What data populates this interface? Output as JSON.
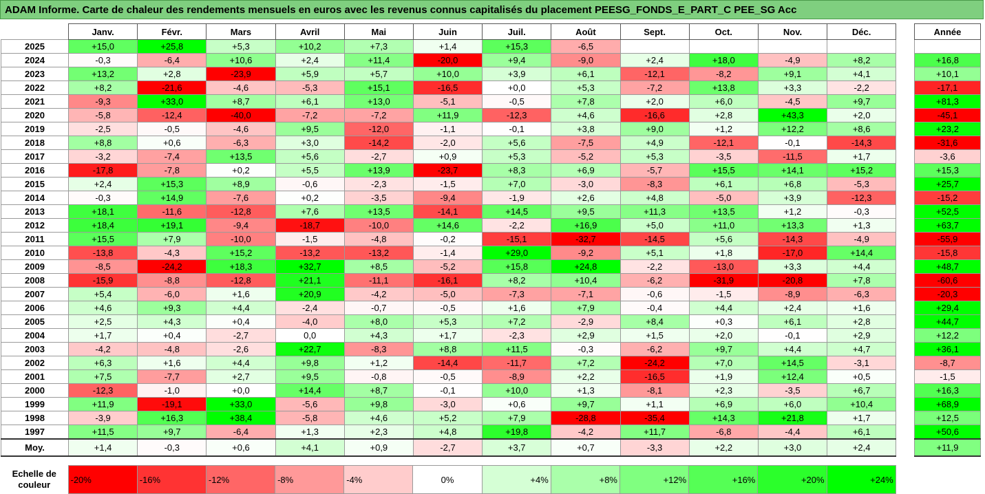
{
  "title": "ADAM Informe. Carte de chaleur des rendements mensuels en euros avec les revenus connus capitalisés du placement PEESG_FONDS_E_PART_C PEE_SG Acc",
  "chart_data": {
    "type": "heatmap",
    "title": "ADAM Informe. Carte de chaleur des rendements mensuels en euros avec les revenus connus capitalisés du placement PEESG_FONDS_E_PART_C PEE_SG Acc",
    "columns": [
      "Janv.",
      "Févr.",
      "Mars",
      "Avril",
      "Mai",
      "Juin",
      "Juil.",
      "Août",
      "Sept.",
      "Oct.",
      "Nov.",
      "Déc."
    ],
    "annual_header": "Année",
    "rows": [
      {
        "year": "2025",
        "values": [
          "+15,0",
          "+25,8",
          "+5,3",
          "+10,2",
          "+7,3",
          "+1,4",
          "+15,3",
          "-6,5",
          "",
          "",
          "",
          ""
        ],
        "annual": ""
      },
      {
        "year": "2024",
        "values": [
          "-0,3",
          "-6,4",
          "+10,6",
          "+2,4",
          "+11,4",
          "-20,0",
          "+9,4",
          "-9,0",
          "+2,4",
          "+18,0",
          "-4,9",
          "+8,2"
        ],
        "annual": "+16,8"
      },
      {
        "year": "2023",
        "values": [
          "+13,2",
          "+2,8",
          "-23,9",
          "+5,9",
          "+5,7",
          "+10,0",
          "+3,9",
          "+6,1",
          "-12,1",
          "-8,2",
          "+9,1",
          "+4,1"
        ],
        "annual": "+10,1"
      },
      {
        "year": "2022",
        "values": [
          "+8,2",
          "-21,6",
          "-4,6",
          "-5,3",
          "+15,1",
          "-16,5",
          "+0,0",
          "+5,3",
          "-7,2",
          "+13,8",
          "+3,3",
          "-2,2"
        ],
        "annual": "-17,1"
      },
      {
        "year": "2021",
        "values": [
          "-9,3",
          "+33,0",
          "+8,7",
          "+6,1",
          "+13,0",
          "-5,1",
          "-0,5",
          "+7,8",
          "+2,0",
          "+6,0",
          "-4,5",
          "+9,7"
        ],
        "annual": "+81,3"
      },
      {
        "year": "2020",
        "values": [
          "-5,8",
          "-12,4",
          "-40,0",
          "-7,2",
          "-7,2",
          "+11,9",
          "-12,3",
          "+4,6",
          "-16,6",
          "+2,8",
          "+43,3",
          "+2,0"
        ],
        "annual": "-45,1"
      },
      {
        "year": "2019",
        "values": [
          "-2,5",
          "-0,5",
          "-4,6",
          "+9,5",
          "-12,0",
          "-1,1",
          "-0,1",
          "+3,8",
          "+9,0",
          "+1,2",
          "+12,2",
          "+8,6"
        ],
        "annual": "+23,2"
      },
      {
        "year": "2018",
        "values": [
          "+8,8",
          "+0,6",
          "-6,3",
          "+3,0",
          "-14,2",
          "-2,0",
          "+5,6",
          "-7,5",
          "+4,9",
          "-12,1",
          "-0,1",
          "-14,3"
        ],
        "annual": "-31,6"
      },
      {
        "year": "2017",
        "values": [
          "-3,2",
          "-7,4",
          "+13,5",
          "+5,6",
          "-2,7",
          "+0,9",
          "+5,3",
          "-5,2",
          "+5,3",
          "-3,5",
          "-11,5",
          "+1,7"
        ],
        "annual": "-3,6"
      },
      {
        "year": "2016",
        "values": [
          "-17,8",
          "-7,8",
          "+0,2",
          "+5,5",
          "+13,9",
          "-23,7",
          "+8,3",
          "+6,9",
          "-5,7",
          "+15,5",
          "+14,1",
          "+15,2"
        ],
        "annual": "+15,3"
      },
      {
        "year": "2015",
        "values": [
          "+2,4",
          "+15,3",
          "+8,9",
          "-0,6",
          "-2,3",
          "-1,5",
          "+7,0",
          "-3,0",
          "-8,3",
          "+6,1",
          "+6,8",
          "-5,3"
        ],
        "annual": "+25,7"
      },
      {
        "year": "2014",
        "values": [
          "-0,3",
          "+14,9",
          "-7,6",
          "+0,2",
          "-3,5",
          "-9,4",
          "-1,9",
          "+2,6",
          "+4,8",
          "-5,0",
          "+3,9",
          "-12,3"
        ],
        "annual": "-15,2"
      },
      {
        "year": "2013",
        "values": [
          "+18,1",
          "-11,6",
          "-12,8",
          "+7,6",
          "+13,5",
          "-14,1",
          "+14,5",
          "+9,5",
          "+11,3",
          "+13,5",
          "+1,2",
          "-0,3"
        ],
        "annual": "+52,5"
      },
      {
        "year": "2012",
        "values": [
          "+18,4",
          "+19,1",
          "-9,4",
          "-18,7",
          "-10,0",
          "+14,6",
          "-2,2",
          "+16,9",
          "+5,0",
          "+11,0",
          "+13,3",
          "+1,3"
        ],
        "annual": "+63,7"
      },
      {
        "year": "2011",
        "values": [
          "+15,5",
          "+7,9",
          "-10,0",
          "-1,5",
          "-4,8",
          "-0,2",
          "-15,1",
          "-32,7",
          "-14,5",
          "+5,6",
          "-14,3",
          "-4,9"
        ],
        "annual": "-55,9"
      },
      {
        "year": "2010",
        "values": [
          "-13,8",
          "-4,3",
          "+15,2",
          "-13,2",
          "-13,2",
          "-1,4",
          "+29,0",
          "-9,2",
          "+5,1",
          "+1,8",
          "-17,0",
          "+14,4"
        ],
        "annual": "-15,8"
      },
      {
        "year": "2009",
        "values": [
          "-8,5",
          "-24,2",
          "+18,3",
          "+32,7",
          "+8,5",
          "-5,2",
          "+15,8",
          "+24,8",
          "-2,2",
          "-13,0",
          "+3,3",
          "+4,4"
        ],
        "annual": "+48,7"
      },
      {
        "year": "2008",
        "values": [
          "-15,9",
          "-8,8",
          "-12,8",
          "+21,1",
          "-11,1",
          "-16,1",
          "+8,2",
          "+10,4",
          "-6,2",
          "-31,9",
          "-20,8",
          "+7,8"
        ],
        "annual": "-60,6"
      },
      {
        "year": "2007",
        "values": [
          "+5,4",
          "-6,0",
          "+1,6",
          "+20,9",
          "-4,2",
          "-5,0",
          "-7,3",
          "-7,1",
          "-0,6",
          "-1,5",
          "-8,9",
          "-6,3"
        ],
        "annual": "-20,3"
      },
      {
        "year": "2006",
        "values": [
          "+4,6",
          "+9,3",
          "+4,4",
          "-2,4",
          "-0,7",
          "-0,5",
          "+1,6",
          "+7,9",
          "-0,4",
          "+4,4",
          "+2,4",
          "+1,6"
        ],
        "annual": "+29,4"
      },
      {
        "year": "2005",
        "values": [
          "+2,5",
          "+4,3",
          "+0,4",
          "-4,0",
          "+8,0",
          "+5,3",
          "+7,2",
          "-2,9",
          "+8,4",
          "+0,3",
          "+6,1",
          "+2,8"
        ],
        "annual": "+44,7"
      },
      {
        "year": "2004",
        "values": [
          "+1,7",
          "+0,4",
          "-2,7",
          "0,0",
          "+4,3",
          "+1,7",
          "-2,3",
          "+2,9",
          "+1,5",
          "+2,0",
          "-0,1",
          "+2,9"
        ],
        "annual": "+12,2"
      },
      {
        "year": "2003",
        "values": [
          "-4,2",
          "-4,8",
          "-2,6",
          "+22,7",
          "-8,3",
          "+8,8",
          "+11,5",
          "-0,3",
          "-6,2",
          "+9,7",
          "+4,4",
          "+4,7"
        ],
        "annual": "+36,1"
      },
      {
        "year": "2002",
        "values": [
          "+6,3",
          "+1,6",
          "+4,4",
          "+9,8",
          "+1,2",
          "-14,4",
          "-11,7",
          "+7,2",
          "-24,2",
          "+7,0",
          "+14,5",
          "-3,1"
        ],
        "annual": "-8,7"
      },
      {
        "year": "2001",
        "values": [
          "+7,5",
          "-7,7",
          "+2,7",
          "+9,5",
          "-0,8",
          "-0,5",
          "-8,9",
          "+2,2",
          "-16,5",
          "+1,9",
          "+12,4",
          "+0,5"
        ],
        "annual": "-1,5"
      },
      {
        "year": "2000",
        "values": [
          "-12,3",
          "-1,0",
          "+0,0",
          "+14,4",
          "+8,7",
          "-0,1",
          "+10,0",
          "+1,3",
          "-8,1",
          "+2,3",
          "-3,5",
          "+6,7"
        ],
        "annual": "+16,3"
      },
      {
        "year": "1999",
        "values": [
          "+11,9",
          "-19,1",
          "+33,0",
          "-5,6",
          "+9,8",
          "-3,0",
          "+0,6",
          "+9,7",
          "+1,1",
          "+6,9",
          "+6,0",
          "+10,4"
        ],
        "annual": "+68,9"
      },
      {
        "year": "1998",
        "values": [
          "-3,9",
          "+16,3",
          "+38,4",
          "-5,8",
          "+4,6",
          "+5,2",
          "+7,9",
          "-28,8",
          "-35,4",
          "+14,3",
          "+21,8",
          "+1,7"
        ],
        "annual": "+12,5"
      },
      {
        "year": "1997",
        "values": [
          "+11,5",
          "+9,7",
          "-6,4",
          "+1,3",
          "+2,3",
          "+4,8",
          "+19,8",
          "-4,2",
          "+11,7",
          "-6,8",
          "-4,4",
          "+6,1"
        ],
        "annual": "+50,6"
      }
    ],
    "average": {
      "label": "Moy.",
      "values": [
        "+1,4",
        "-0,3",
        "+0,6",
        "+4,1",
        "+0,9",
        "-2,7",
        "+3,7",
        "+0,7",
        "-3,3",
        "+2,2",
        "+3,0",
        "+2,4"
      ],
      "annual": "+11,9"
    },
    "scale": {
      "label": "Echelle de couleur",
      "steps": [
        {
          "text": "-20%",
          "value": -20,
          "align": "left"
        },
        {
          "text": "-16%",
          "value": -16,
          "align": "left"
        },
        {
          "text": "-12%",
          "value": -12,
          "align": "left"
        },
        {
          "text": "-8%",
          "value": -8,
          "align": "left"
        },
        {
          "text": "-4%",
          "value": -4,
          "align": "left"
        },
        {
          "text": "0%",
          "value": 0,
          "align": "center"
        },
        {
          "text": "+4%",
          "value": 4,
          "align": "right"
        },
        {
          "text": "+8%",
          "value": 8,
          "align": "right"
        },
        {
          "text": "+12%",
          "value": 12,
          "align": "right"
        },
        {
          "text": "+16%",
          "value": 16,
          "align": "right"
        },
        {
          "text": "+20%",
          "value": 20,
          "align": "right"
        },
        {
          "text": "+24%",
          "value": 24,
          "align": "right"
        }
      ]
    },
    "colors": {
      "negative": "#ff0000",
      "neutral": "#ffffff",
      "positive": "#00ff00"
    }
  }
}
